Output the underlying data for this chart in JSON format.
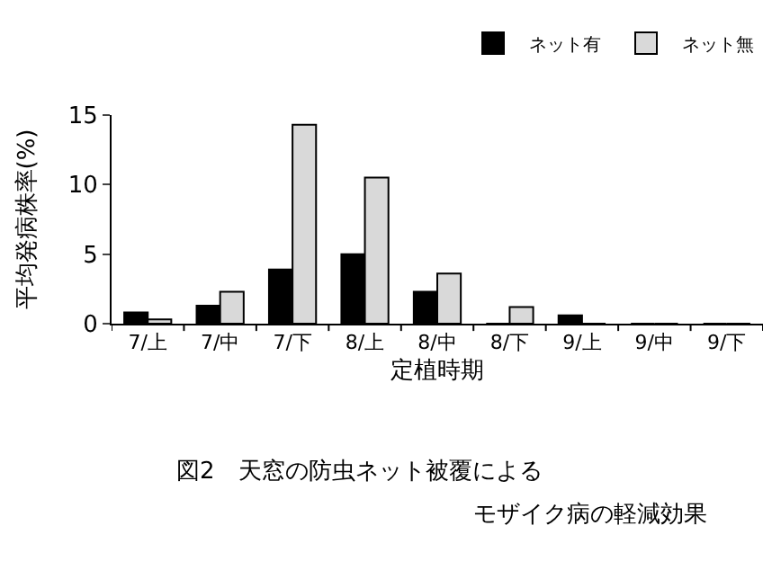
{
  "chart_data": {
    "type": "bar",
    "categories": [
      "7/上",
      "7/中",
      "7/下",
      "8/上",
      "8/中",
      "8/下",
      "9/上",
      "9/中",
      "9/下"
    ],
    "series": [
      {
        "name": "ネット有",
        "color": "#000000",
        "values": [
          0.8,
          1.3,
          3.9,
          5.0,
          2.3,
          0,
          0.6,
          0,
          0
        ]
      },
      {
        "name": "ネット無",
        "color": "#d9d9d9",
        "values": [
          0.3,
          2.3,
          14.3,
          10.5,
          3.6,
          1.2,
          0,
          0,
          0
        ]
      }
    ],
    "xlabel": "定植時期",
    "ylabel": "平均発病株率(%)",
    "ylim": [
      0,
      15
    ],
    "yticks": [
      0,
      5,
      10,
      15
    ],
    "legend": "top right",
    "annotations": [
      "図2　天窓の防虫ネット被覆による",
      "モザイク病の軽減効果"
    ]
  }
}
